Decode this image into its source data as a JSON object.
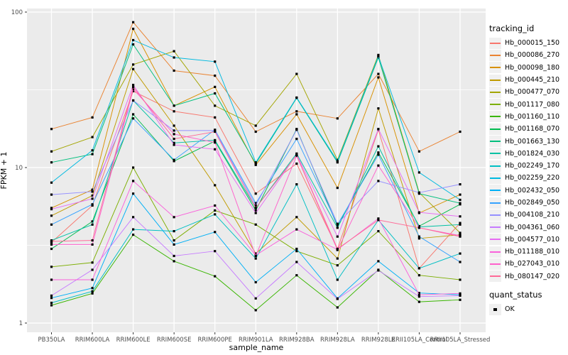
{
  "chart_data": {
    "type": "line",
    "title": "",
    "xlabel": "sample_name",
    "ylabel": "FPKM + 1",
    "y_scale": "log10",
    "ylim": [
      1,
      100
    ],
    "y_ticks": [
      "1",
      "10",
      "100"
    ],
    "y_minor_ticks": [
      3.1623,
      31.623
    ],
    "grid": "on",
    "legend_position": "right",
    "categories": [
      "PB350LA",
      "RRIM600LA",
      "RRIM600LE",
      "RRIM600SE",
      "RRIM600PE",
      "RRIM901LA",
      "RRIM928BA",
      "RRIM928LA",
      "RRIM928LE",
      "RRII105LA_Control",
      "RRII105LA_Stressed"
    ],
    "series": [
      {
        "name": "Hb_000015_150",
        "color": "#F8766D",
        "values": [
          3.3,
          5.7,
          31,
          23,
          21,
          6.8,
          10.6,
          3.0,
          17.5,
          2.25,
          4.4
        ]
      },
      {
        "name": "Hb_000086_270",
        "color": "#EA8331",
        "values": [
          17.7,
          21,
          86,
          42,
          39,
          17,
          23,
          20.7,
          40,
          12.7,
          17
        ]
      },
      {
        "name": "Hb_000098_180",
        "color": "#D89000",
        "values": [
          5.5,
          7.2,
          78,
          25,
          33,
          10.4,
          22,
          7.4,
          38,
          5.1,
          6.7
        ]
      },
      {
        "name": "Hb_000445_210",
        "color": "#C09B00",
        "values": [
          4.9,
          6.6,
          43,
          18.6,
          7.7,
          2.8,
          4.8,
          2.6,
          24,
          3.5,
          3.7
        ]
      },
      {
        "name": "Hb_000477_070",
        "color": "#A3A500",
        "values": [
          12.7,
          15.7,
          46,
          56,
          25,
          18.6,
          40,
          11.2,
          53,
          6.9,
          3.8
        ]
      },
      {
        "name": "Hb_001117_080",
        "color": "#7CAE00",
        "values": [
          2.3,
          2.45,
          10,
          3.4,
          5.3,
          4.3,
          2.9,
          2.35,
          3.9,
          2.03,
          1.9
        ]
      },
      {
        "name": "Hb_001160_110",
        "color": "#39B600",
        "values": [
          1.3,
          1.55,
          3.7,
          2.5,
          2.0,
          1.21,
          2.03,
          1.26,
          2.2,
          1.37,
          1.41
        ]
      },
      {
        "name": "Hb_001168_070",
        "color": "#00BB4E",
        "values": [
          3.0,
          4.5,
          22,
          11.0,
          14.8,
          5.3,
          17.7,
          4.2,
          12.5,
          4.2,
          5.8
        ]
      },
      {
        "name": "Hb_001663_130",
        "color": "#00BF7D",
        "values": [
          10.8,
          12.2,
          62,
          25,
          30,
          10.6,
          28,
          10.8,
          51,
          6.8,
          5.9
        ]
      },
      {
        "name": "Hb_001824_030",
        "color": "#00C1A3",
        "values": [
          3.4,
          4.3,
          27,
          14.4,
          15,
          5.5,
          12.3,
          4.1,
          13.7,
          4.15,
          4.3
        ]
      },
      {
        "name": "Hb_002249_170",
        "color": "#00BFC4",
        "values": [
          1.35,
          1.6,
          4.0,
          3.9,
          5.0,
          2.6,
          7.8,
          1.9,
          4.6,
          2.25,
          2.8
        ]
      },
      {
        "name": "Hb_002259_220",
        "color": "#00BAE0",
        "values": [
          8.0,
          12.9,
          66,
          51,
          48,
          10.8,
          28.2,
          11.0,
          52,
          9.3,
          6.2
        ]
      },
      {
        "name": "Hb_002432_050",
        "color": "#00B0F6",
        "values": [
          1.45,
          1.68,
          6.8,
          3.2,
          3.85,
          1.83,
          3.0,
          1.44,
          2.5,
          1.56,
          1.52
        ]
      },
      {
        "name": "Hb_002849_050",
        "color": "#35A2FF",
        "values": [
          4.3,
          5.8,
          20.7,
          11.2,
          17.5,
          5.9,
          15.3,
          4.3,
          12.1,
          3.6,
          2.47
        ]
      },
      {
        "name": "Hb_004108_210",
        "color": "#9590FF",
        "values": [
          6.7,
          7.0,
          27,
          17.3,
          17.3,
          5.7,
          17.5,
          4.35,
          8.2,
          6.9,
          7.8
        ]
      },
      {
        "name": "Hb_004361_060",
        "color": "#C77CFF",
        "values": [
          1.5,
          2.2,
          4.8,
          2.7,
          2.9,
          1.44,
          2.47,
          1.43,
          2.18,
          1.48,
          1.5
        ]
      },
      {
        "name": "Hb_004577_010",
        "color": "#E76BF3",
        "values": [
          5.4,
          6.3,
          34,
          14.0,
          13.1,
          5.1,
          12.1,
          3.6,
          17.7,
          5.15,
          4.85
        ]
      },
      {
        "name": "Hb_011188_010",
        "color": "#FA62DB",
        "values": [
          1.9,
          1.9,
          8.2,
          4.8,
          5.7,
          2.73,
          4.0,
          2.97,
          4.7,
          1.52,
          1.55
        ]
      },
      {
        "name": "Hb_027043_010",
        "color": "#FF61CC",
        "values": [
          3.2,
          3.2,
          32,
          16.4,
          14.5,
          2.7,
          11.9,
          2.95,
          10.3,
          4.1,
          3.65
        ]
      },
      {
        "name": "Hb_080147_020",
        "color": "#FF6A98",
        "values": [
          3.35,
          3.4,
          33,
          15.3,
          17,
          5.5,
          12,
          3.0,
          4.6,
          4.1,
          3.6
        ]
      }
    ],
    "layout": {
      "panel_bg": "#EBEBEB",
      "grid_color": "#FFFFFF",
      "tick_text_color": "#4D4D4D",
      "tick_mark_color": "#333333",
      "marker_color": "#000000"
    }
  },
  "legend": {
    "tracking_title": "tracking_id",
    "quant_title": "quant_status",
    "quant_ok_label": "OK"
  }
}
